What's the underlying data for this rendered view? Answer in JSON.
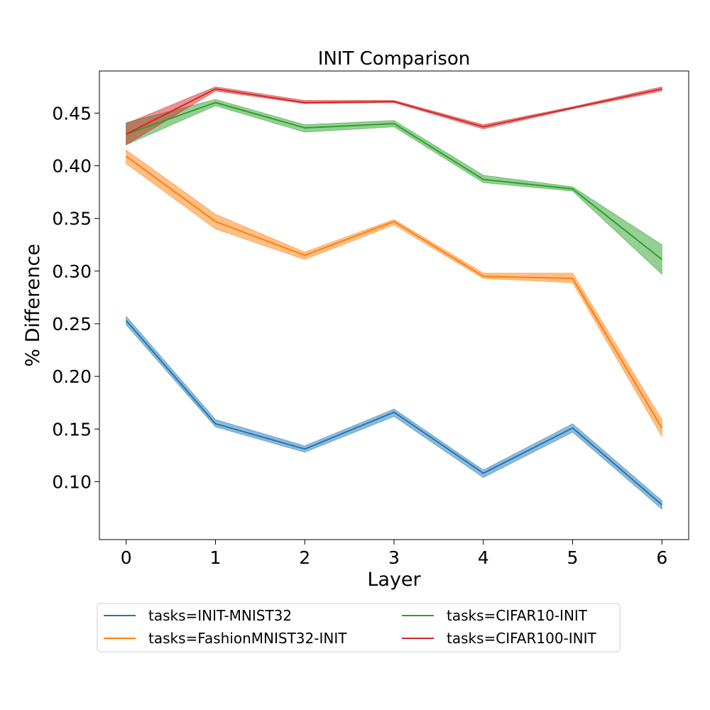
{
  "chart_data": {
    "type": "line",
    "title": "INIT Comparison",
    "xlabel": "Layer",
    "ylabel": "% Difference",
    "x": [
      0,
      1,
      2,
      3,
      4,
      5,
      6
    ],
    "xlim": [
      -0.3,
      6.3
    ],
    "ylim": [
      0.045,
      0.49
    ],
    "xticks": [
      0,
      1,
      2,
      3,
      4,
      5,
      6
    ],
    "yticks": [
      0.1,
      0.15,
      0.2,
      0.25,
      0.3,
      0.35,
      0.4,
      0.45
    ],
    "grid": false,
    "legend_position": "below plot, two columns",
    "series": [
      {
        "name": "tasks=INIT-MNIST32",
        "color": "#1f77b4",
        "values": [
          0.253,
          0.155,
          0.131,
          0.166,
          0.108,
          0.151,
          0.078
        ],
        "lower": [
          0.249,
          0.152,
          0.128,
          0.162,
          0.104,
          0.147,
          0.074
        ],
        "upper": [
          0.257,
          0.159,
          0.134,
          0.169,
          0.111,
          0.155,
          0.082
        ]
      },
      {
        "name": "tasks=FashionMNIST32-INIT",
        "color": "#ff7f0e",
        "values": [
          0.409,
          0.347,
          0.315,
          0.347,
          0.295,
          0.293,
          0.151
        ],
        "lower": [
          0.402,
          0.34,
          0.311,
          0.344,
          0.293,
          0.289,
          0.143
        ],
        "upper": [
          0.415,
          0.354,
          0.318,
          0.349,
          0.298,
          0.298,
          0.159
        ]
      },
      {
        "name": "tasks=CIFAR10-INIT",
        "color": "#2ca02c",
        "values": [
          0.43,
          0.46,
          0.436,
          0.44,
          0.387,
          0.378,
          0.311
        ],
        "lower": [
          0.42,
          0.457,
          0.432,
          0.437,
          0.384,
          0.376,
          0.297
        ],
        "upper": [
          0.441,
          0.463,
          0.439,
          0.443,
          0.391,
          0.38,
          0.325
        ]
      },
      {
        "name": "tasks=CIFAR100-INIT",
        "color": "#d62728",
        "values": [
          0.43,
          0.473,
          0.46,
          0.461,
          0.437,
          0.455,
          0.473
        ],
        "lower": [
          0.42,
          0.471,
          0.459,
          0.46,
          0.435,
          0.454,
          0.471
        ],
        "upper": [
          0.44,
          0.475,
          0.462,
          0.462,
          0.439,
          0.456,
          0.475
        ]
      }
    ]
  }
}
